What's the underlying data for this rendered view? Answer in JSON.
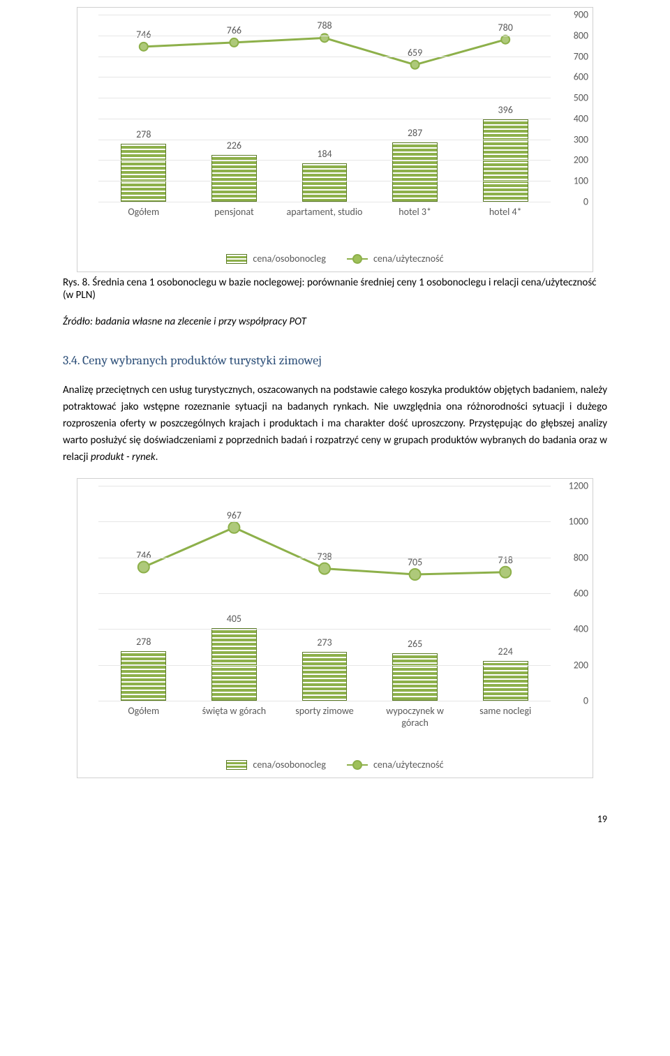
{
  "colors": {
    "bar_fill": "#8db04a",
    "bar_border": "#5a7a24",
    "line_stroke": "#8db04a",
    "marker_fill": "#aec97a",
    "grid": "#e6e6e6",
    "text": "#595959"
  },
  "chart1": {
    "type": "bar+line",
    "categories": [
      "Ogółem",
      "pensjonat",
      "apartament, studio",
      "hotel 3*",
      "hotel 4*"
    ],
    "bar_values": [
      278,
      226,
      184,
      287,
      396
    ],
    "line_values": [
      746,
      766,
      788,
      659,
      780
    ],
    "y_min": 0,
    "y_max": 900,
    "y_step": 100,
    "bar_width_pct": 10,
    "legend_bar": "cena/osobonocleg",
    "legend_line": "cena/użyteczność",
    "marker_radius": 6
  },
  "caption1_prefix": "Rys. 8. ",
  "caption1_body": "Średnia cena 1 osobonoclegu w bazie noclegowej: porównanie średniej ceny 1 osobonoclegu i relacji cena/użyteczność (w PLN)",
  "source_line": "Źródło: badania własne na zlecenie i przy współpracy POT",
  "section_num": "3.4.",
  "section_title": "Ceny wybranych produktów turystyki zimowej",
  "paragraph": "Analizę przeciętnych cen usług turystycznych, oszacowanych na podstawie całego koszyka produktów objętych badaniem, należy potraktować jako wstępne rozeznanie sytuacji na badanych rynkach. Nie uwzględnia ona różnorodności sytuacji i dużego rozproszenia oferty w poszczególnych krajach i produktach i ma charakter dość uproszczony. Przystępując do głębszej analizy warto posłużyć się doświadczeniami z poprzednich badań i rozpatrzyć ceny w grupach produktów wybranych do badania oraz w relacji ",
  "paragraph_em": "produkt - rynek",
  "paragraph_after": ".",
  "chart2": {
    "type": "bar+line",
    "categories": [
      "Ogółem",
      "święta w górach",
      "sporty zimowe",
      "wypoczynek w górach",
      "same noclegi"
    ],
    "bar_values": [
      278,
      405,
      273,
      265,
      224
    ],
    "line_values": [
      746,
      967,
      738,
      705,
      718
    ],
    "y_min": 0,
    "y_max": 1200,
    "y_step": 200,
    "bar_width_pct": 10,
    "legend_bar": "cena/osobonocleg",
    "legend_line": "cena/użyteczność",
    "marker_radius": 8
  },
  "page_number": "19"
}
